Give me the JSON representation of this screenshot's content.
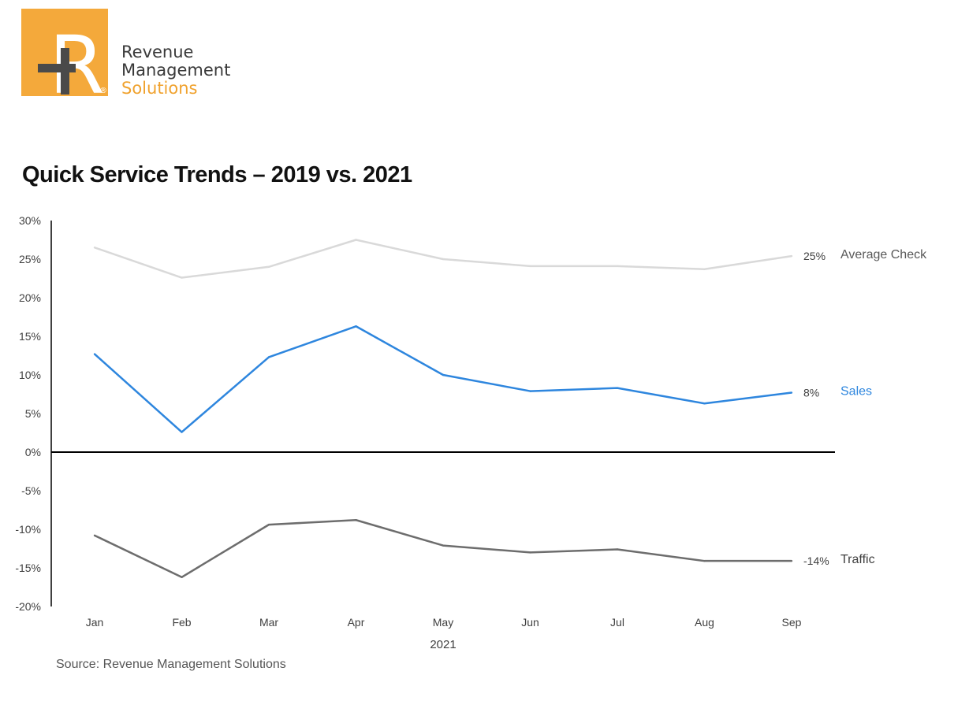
{
  "brand": {
    "lines": [
      "Revenue",
      "Management",
      "Solutions"
    ],
    "mark_letter": "R",
    "registered": "®",
    "colors": {
      "tile": "#F4A93B",
      "plus": "#4A4A4A",
      "accent": "#F0A22E",
      "text": "#3A3A3A"
    }
  },
  "footer": {
    "source": "Source: Revenue Management Solutions"
  },
  "chart_data": {
    "type": "line",
    "title": "Quick Service Trends – 2019 vs. 2021",
    "xlabel": "2021",
    "ylabel": "",
    "categories": [
      "Jan",
      "Feb",
      "Mar",
      "Apr",
      "May",
      "Jun",
      "Jul",
      "Aug",
      "Sep"
    ],
    "ylim": [
      -20,
      30
    ],
    "yticks": [
      -20,
      -15,
      -10,
      -5,
      0,
      5,
      10,
      15,
      20,
      25,
      30
    ],
    "ytick_labels": [
      "-20%",
      "-15%",
      "-10%",
      "-5%",
      "0%",
      "5%",
      "10%",
      "15%",
      "20%",
      "25%",
      "30%"
    ],
    "grid": false,
    "legend": "direct labels at right end of each line",
    "series": [
      {
        "name": "Average Check",
        "color": "#D9D9D9",
        "label_color": "#595959",
        "end_label": "25%",
        "values": [
          26.5,
          22.6,
          24.0,
          27.5,
          25.0,
          24.1,
          24.1,
          23.7,
          25.4
        ]
      },
      {
        "name": "Sales",
        "color": "#2E86DE",
        "label_color": "#2E86DE",
        "end_label": "8%",
        "values": [
          12.7,
          2.6,
          12.3,
          16.3,
          10.0,
          7.9,
          8.3,
          6.3,
          7.7
        ]
      },
      {
        "name": "Traffic",
        "color": "#6D6D6D",
        "label_color": "#404040",
        "end_label": "-14%",
        "values": [
          -10.8,
          -16.2,
          -9.4,
          -8.8,
          -12.1,
          -13.0,
          -12.6,
          -14.1,
          -14.1
        ]
      }
    ]
  }
}
